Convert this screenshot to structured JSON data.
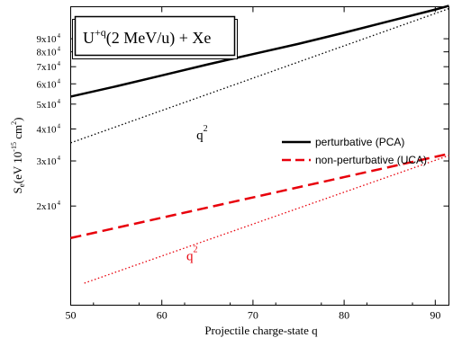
{
  "chart_data": {
    "type": "line",
    "x_label": "Projectile charge-state q",
    "y_label": {
      "prefix": "S",
      "subscript": "e",
      "unit_open": "(eV 10",
      "unit_exp": "-15",
      "unit_mid": " cm",
      "unit_exp2": "2",
      "unit_close": ")"
    },
    "x_scale": "linear",
    "y_scale": "log",
    "xlim": [
      50,
      91.5
    ],
    "ylim": [
      8200,
      120000
    ],
    "x_ticks": [
      50,
      60,
      70,
      80,
      90
    ],
    "y_ticks": [
      {
        "value": 20000,
        "mant": "2x10",
        "exp": "4"
      },
      {
        "value": 30000,
        "mant": "3x10",
        "exp": "4"
      },
      {
        "value": 40000,
        "mant": "4x10",
        "exp": "4"
      },
      {
        "value": 50000,
        "mant": "5x10",
        "exp": "4"
      },
      {
        "value": 60000,
        "mant": "6x10",
        "exp": "4"
      },
      {
        "value": 70000,
        "mant": "7x10",
        "exp": "4"
      },
      {
        "value": 80000,
        "mant": "8x10",
        "exp": "4"
      },
      {
        "value": 90000,
        "mant": "9x10",
        "exp": "4"
      }
    ],
    "inset_title": {
      "prefix": "U",
      "sup": "+q",
      "suffix": "(2 MeV/u) + Xe"
    },
    "legend_position": "right-middle",
    "series": [
      {
        "name": "perturbative (PCA)",
        "style": "solid",
        "color": "#000000",
        "legend": true,
        "x": [
          50,
          55,
          60,
          65,
          70,
          75,
          80,
          85,
          90,
          91.5
        ],
        "y": [
          53500,
          58700,
          64700,
          71400,
          78400,
          86000,
          95000,
          105500,
          117000,
          121000
        ]
      },
      {
        "name": "non-perturbative (UCA)",
        "style": "dashed",
        "color": "#e8000b",
        "legend": true,
        "x": [
          50,
          91.5
        ],
        "y": [
          15000,
          32000
        ]
      },
      {
        "name": "q2-fit-perturbative",
        "style": "dotted",
        "color": "#000000",
        "legend": false,
        "x": [
          50,
          91.5
        ],
        "y": [
          35300,
          118000
        ]
      },
      {
        "name": "q2-fit-nonperturbative",
        "style": "dotted",
        "color": "#e8000b",
        "legend": false,
        "x": [
          51.5,
          91.5
        ],
        "y": [
          10000,
          31500
        ]
      }
    ],
    "annotations": [
      {
        "base": "q",
        "sup": "2",
        "color": "#000000",
        "x": 63.8,
        "y": 36500
      },
      {
        "base": "q",
        "sup": "2",
        "color": "#e8000b",
        "x": 62.7,
        "y": 12300
      }
    ]
  }
}
